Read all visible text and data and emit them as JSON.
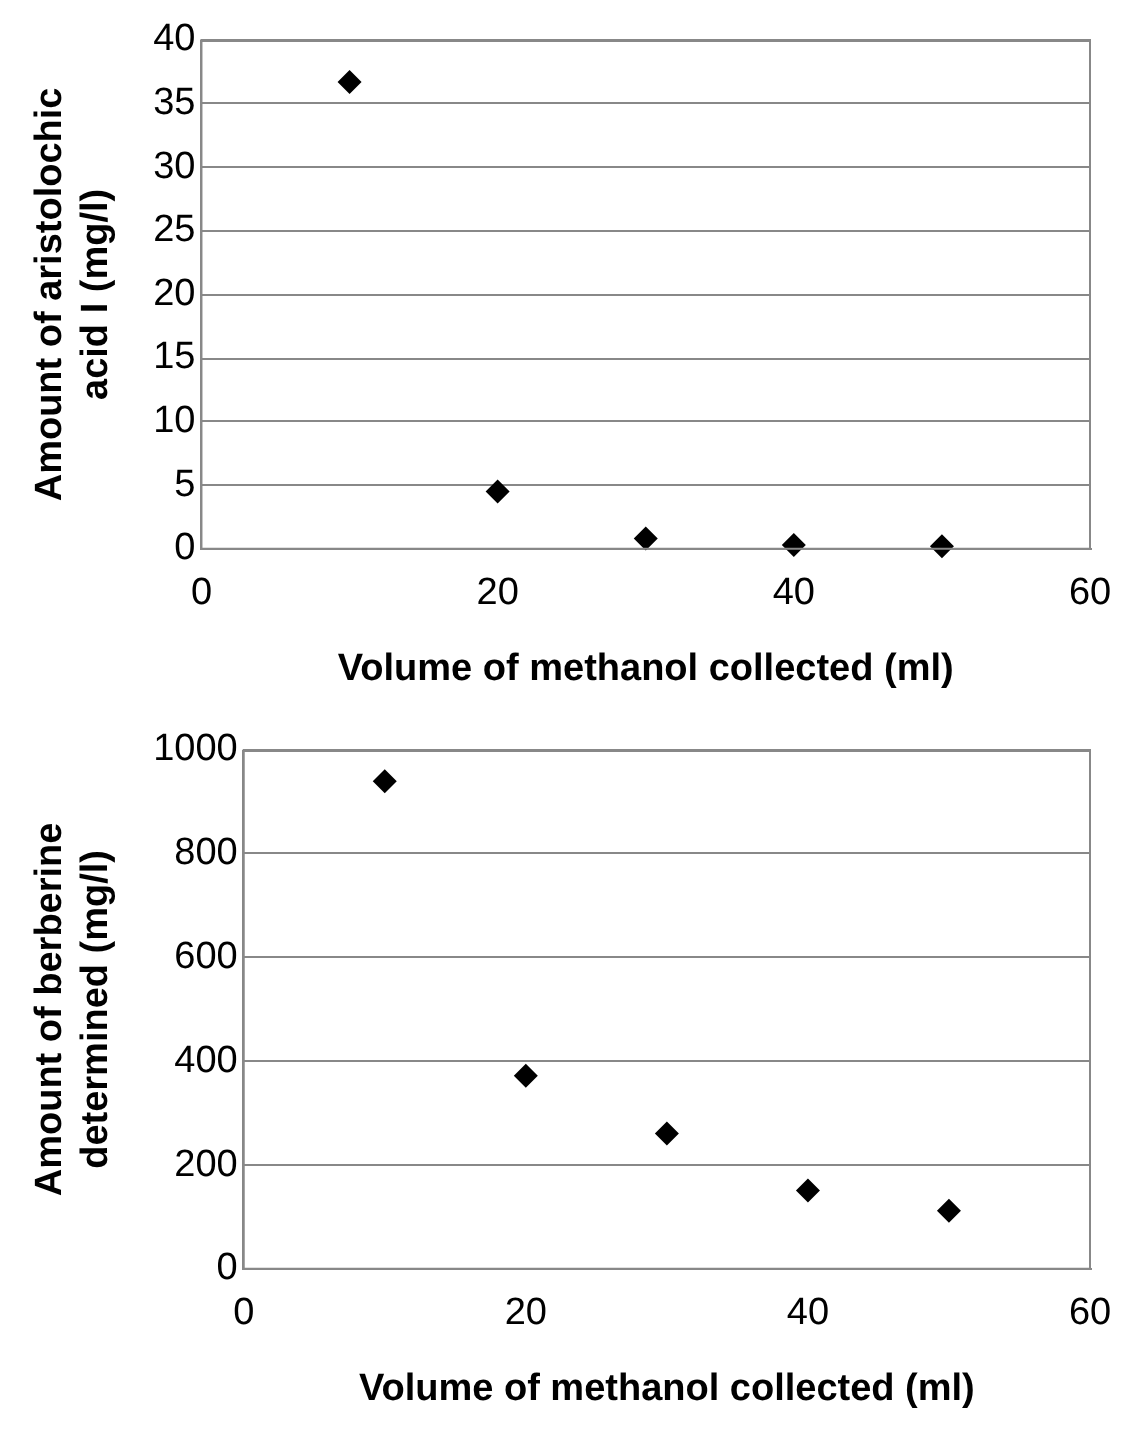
{
  "chart_data": [
    {
      "type": "scatter",
      "xlabel": "Volume of methanol collected (ml)",
      "ylabel": "Amount of aristolochic acid I (mg/l)",
      "x": [
        10,
        20,
        30,
        40,
        50
      ],
      "series": [
        {
          "color": "#000000",
          "values": [
            36.7,
            4.5,
            0.8,
            0.3,
            0.2
          ]
        }
      ],
      "xlim": [
        0,
        60
      ],
      "xticks": [
        0,
        20,
        40,
        60
      ],
      "ylim": [
        0,
        40
      ],
      "yticks": [
        0,
        5,
        10,
        15,
        20,
        25,
        30,
        35,
        40
      ],
      "grid": "y",
      "marker": "diamond",
      "legend": false
    },
    {
      "type": "scatter",
      "xlabel": "Volume of methanol collected (ml)",
      "ylabel": "Amount of berberine determined (mg/l)",
      "x": [
        10,
        20,
        30,
        40,
        50
      ],
      "series": [
        {
          "color": "#000000",
          "values": [
            940,
            372,
            261,
            151,
            112
          ]
        }
      ],
      "xlim": [
        0,
        60
      ],
      "xticks": [
        0,
        20,
        40,
        60
      ],
      "ylim": [
        0,
        1000
      ],
      "yticks": [
        0,
        200,
        400,
        600,
        800,
        1000
      ],
      "grid": "y",
      "marker": "diamond",
      "legend": false
    }
  ]
}
